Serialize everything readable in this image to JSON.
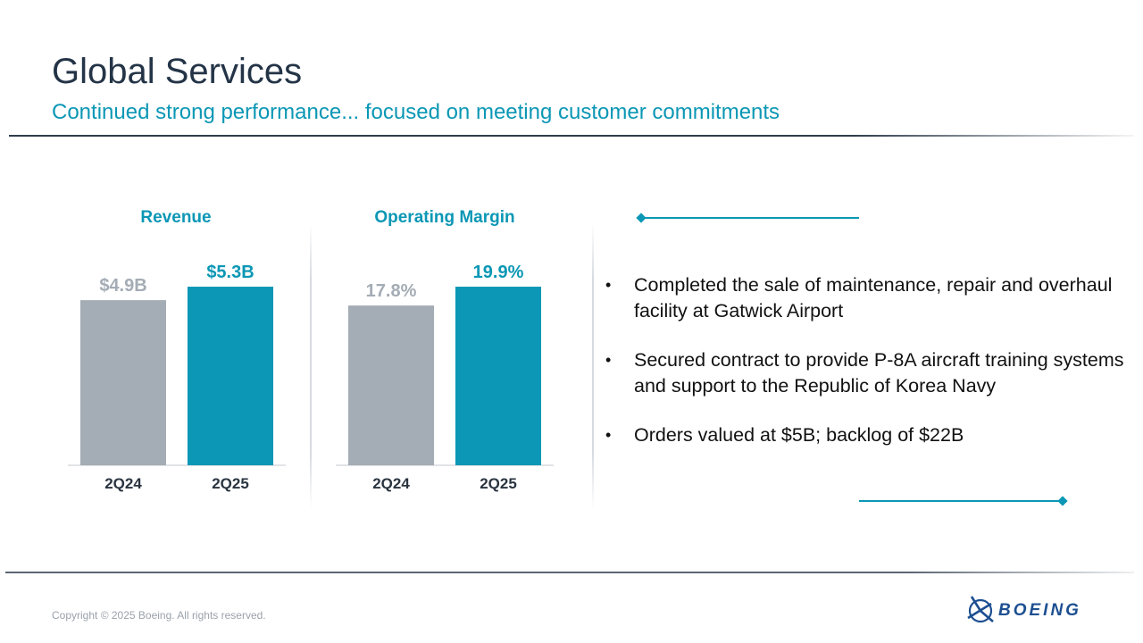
{
  "slide": {
    "title": "Global Services",
    "subtitle": "Continued strong performance... focused on meeting customer commitments",
    "copyright": "Copyright © 2025 Boeing. All rights reserved.",
    "logo_text": "BOEING"
  },
  "bullets": [
    "Completed the sale of maintenance, repair and overhaul facility at Gatwick Airport",
    "Secured contract to provide P-8A aircraft training systems and support to the Republic of Korea Navy",
    "Orders valued at $5B; backlog of $22B"
  ],
  "colors": {
    "accent": "#0b97b5",
    "prior": "#a4acb5",
    "title": "#243447"
  },
  "chart_data": [
    {
      "type": "bar",
      "title": "Revenue",
      "categories": [
        "2Q24",
        "2Q25"
      ],
      "values": [
        4.9,
        5.3
      ],
      "labels": [
        "$4.9B",
        "$5.3B"
      ],
      "ylim": [
        0,
        5.3
      ],
      "xlabel": "",
      "ylabel": ""
    },
    {
      "type": "bar",
      "title": "Operating Margin",
      "categories": [
        "2Q24",
        "2Q25"
      ],
      "values": [
        17.8,
        19.9
      ],
      "labels": [
        "17.8%",
        "19.9%"
      ],
      "ylim": [
        0,
        19.9
      ],
      "xlabel": "",
      "ylabel": ""
    }
  ]
}
